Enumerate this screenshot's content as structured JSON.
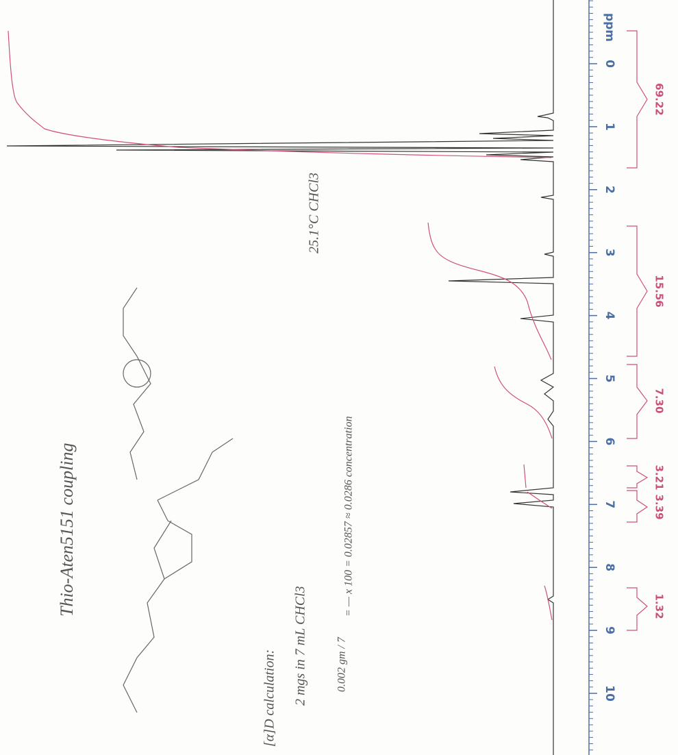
{
  "axis": {
    "title": "ppm",
    "ticks": [
      0,
      1,
      2,
      3,
      4,
      5,
      6,
      7,
      8,
      9,
      10
    ]
  },
  "integrals": [
    {
      "label": "69.22"
    },
    {
      "label": "15.56"
    },
    {
      "label": "7.30"
    },
    {
      "label": "3.21"
    },
    {
      "label": "3.39"
    },
    {
      "label": "1.32"
    }
  ],
  "notes": {
    "title": "Thio-Aten5151 coupling",
    "conditions": "25.1°C CHCl3",
    "calc_heading": "[α]D calculation:",
    "calc_amount": "2 mgs in 7 mL CHCl3",
    "calc_fraction": "0.002 gm / 7",
    "calc_result": "= — x 100 = 0.02857 ≈ 0.0286 concentration"
  }
}
